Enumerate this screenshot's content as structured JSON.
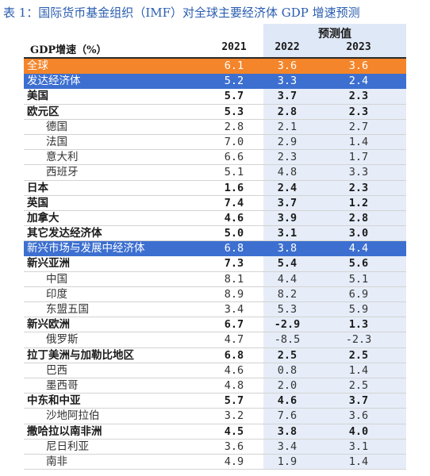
{
  "title": "表 1：国际货币基金组织（IMF）对全球主要经济体 GDP 增速预测",
  "header": {
    "label": "GDP增速（%）",
    "projection": "预测值",
    "years": [
      "2021",
      "2022",
      "2023"
    ]
  },
  "rows": [
    {
      "name": "全球",
      "v": [
        "6.1",
        "3.6",
        "3.6"
      ],
      "style": "world"
    },
    {
      "name": "发达经济体",
      "v": [
        "5.2",
        "3.3",
        "2.4"
      ],
      "style": "blue"
    },
    {
      "name": "美国",
      "v": [
        "5.7",
        "3.7",
        "2.3"
      ],
      "style": "bold"
    },
    {
      "name": "欧元区",
      "v": [
        "5.3",
        "2.8",
        "2.3"
      ],
      "style": "bold"
    },
    {
      "name": "德国",
      "v": [
        "2.8",
        "2.1",
        "2.7"
      ],
      "style": "sub"
    },
    {
      "name": "法国",
      "v": [
        "7.0",
        "2.9",
        "1.4"
      ],
      "style": "sub"
    },
    {
      "name": "意大利",
      "v": [
        "6.6",
        "2.3",
        "1.7"
      ],
      "style": "sub"
    },
    {
      "name": "西班牙",
      "v": [
        "5.1",
        "4.8",
        "3.3"
      ],
      "style": "sub"
    },
    {
      "name": "日本",
      "v": [
        "1.6",
        "2.4",
        "2.3"
      ],
      "style": "bold"
    },
    {
      "name": "英国",
      "v": [
        "7.4",
        "3.7",
        "1.2"
      ],
      "style": "bold"
    },
    {
      "name": "加拿大",
      "v": [
        "4.6",
        "3.9",
        "2.8"
      ],
      "style": "bold"
    },
    {
      "name": "其它发达经济体",
      "v": [
        "5.0",
        "3.1",
        "3.0"
      ],
      "style": "bold"
    },
    {
      "name": "新兴市场与发展中经济体",
      "v": [
        "6.8",
        "3.8",
        "4.4"
      ],
      "style": "blue"
    },
    {
      "name": "新兴亚洲",
      "v": [
        "7.3",
        "5.4",
        "5.6"
      ],
      "style": "bold"
    },
    {
      "name": "中国",
      "v": [
        "8.1",
        "4.4",
        "5.1"
      ],
      "style": "sub"
    },
    {
      "name": "印度",
      "v": [
        "8.9",
        "8.2",
        "6.9"
      ],
      "style": "sub"
    },
    {
      "name": "东盟五国",
      "v": [
        "3.4",
        "5.3",
        "5.9"
      ],
      "style": "sub"
    },
    {
      "name": "新兴欧洲",
      "v": [
        "6.7",
        "-2.9",
        "1.3"
      ],
      "style": "bold"
    },
    {
      "name": "俄罗斯",
      "v": [
        "4.7",
        "-8.5",
        "-2.3"
      ],
      "style": "sub"
    },
    {
      "name": "拉丁美洲与加勒比地区",
      "v": [
        "6.8",
        "2.5",
        "2.5"
      ],
      "style": "bold"
    },
    {
      "name": "巴西",
      "v": [
        "4.6",
        "0.8",
        "1.4"
      ],
      "style": "sub"
    },
    {
      "name": "墨西哥",
      "v": [
        "4.8",
        "2.0",
        "2.5"
      ],
      "style": "sub"
    },
    {
      "name": "中东和中亚",
      "v": [
        "5.7",
        "4.6",
        "3.7"
      ],
      "style": "bold"
    },
    {
      "name": "沙地阿拉伯",
      "v": [
        "3.2",
        "7.6",
        "3.6"
      ],
      "style": "sub"
    },
    {
      "name": "撒哈拉以南非洲",
      "v": [
        "4.5",
        "3.8",
        "4.0"
      ],
      "style": "bold"
    },
    {
      "name": "尼日利亚",
      "v": [
        "3.6",
        "3.4",
        "3.1"
      ],
      "style": "sub"
    },
    {
      "name": "南非",
      "v": [
        "4.9",
        "1.9",
        "1.4"
      ],
      "style": "sub"
    }
  ]
}
